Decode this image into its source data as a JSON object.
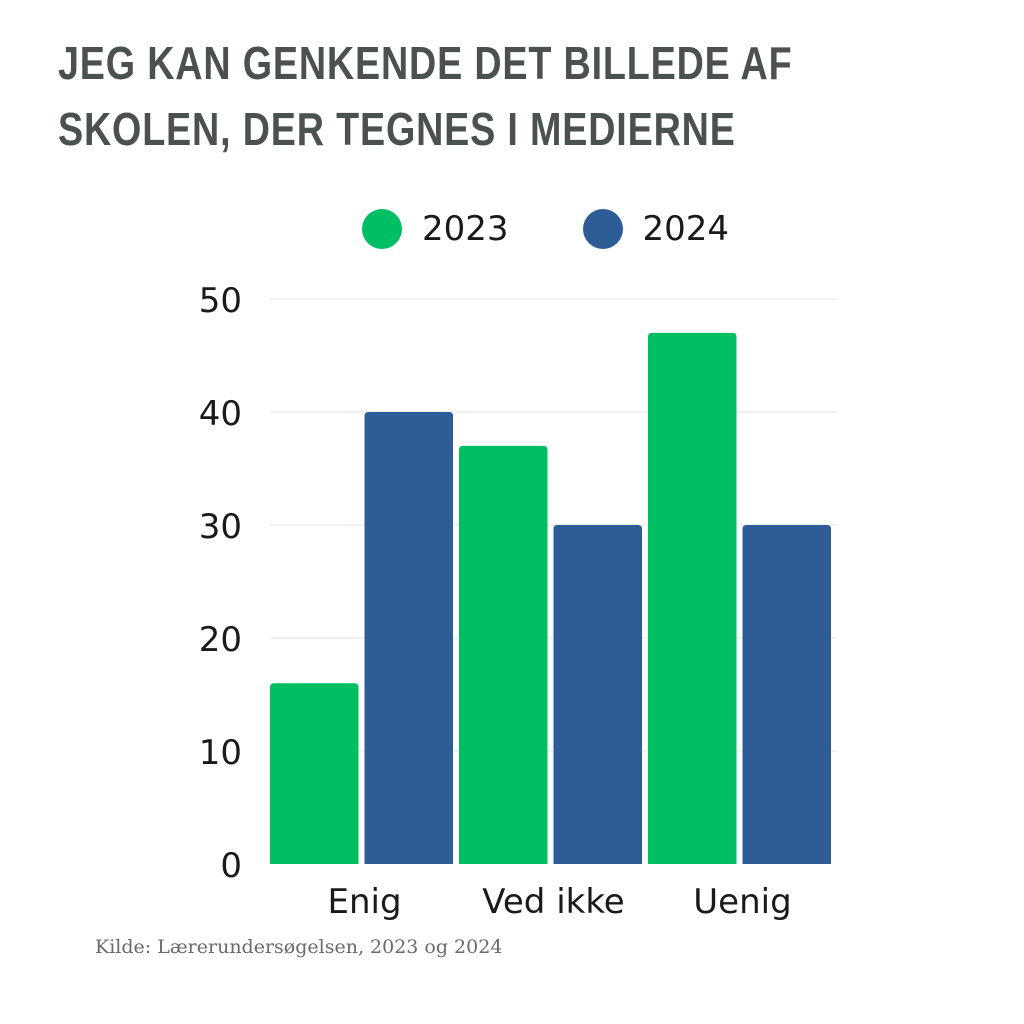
{
  "title": "JEG KAN GENKENDE DET BILLEDE AF SKOLEN, DER TEGNES I MEDIERNE",
  "source": "Kilde: Lærerundersøgelsen, 2023 og 2024",
  "chart_data": {
    "type": "bar",
    "title": "JEG KAN GENKENDE DET BILLEDE AF SKOLEN, DER TEGNES I MEDIERNE",
    "xlabel": "",
    "ylabel": "",
    "categories": [
      "Enig",
      "Ved ikke",
      "Uenig"
    ],
    "series": [
      {
        "name": "2023",
        "color": "#00bf63",
        "values": [
          16,
          37,
          47
        ]
      },
      {
        "name": "2024",
        "color": "#2e5c97",
        "values": [
          40,
          30,
          30
        ]
      }
    ],
    "ylim": [
      0,
      50
    ],
    "yticks": [
      0,
      10,
      20,
      30,
      40,
      50
    ],
    "grid": true,
    "legend": "top"
  }
}
